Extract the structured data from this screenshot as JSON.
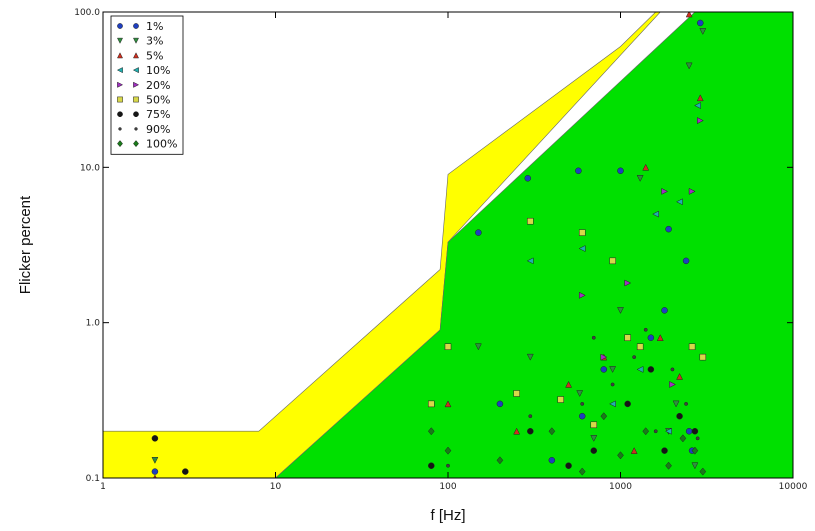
{
  "chart_data": {
    "type": "scatter",
    "title": "",
    "xlabel": "f [Hz]",
    "ylabel": "Flicker percent",
    "x_scale": "log",
    "y_scale": "log",
    "xlim": [
      1,
      10000
    ],
    "ylim": [
      0.1,
      100
    ],
    "x_ticks": [
      1,
      10,
      100,
      1000,
      10000
    ],
    "x_tick_labels": [
      "1",
      "10",
      "100",
      "1000",
      "10000"
    ],
    "y_ticks": [
      0.1,
      1,
      10,
      100
    ],
    "y_tick_labels": [
      "0.1",
      "1.0",
      "10.0",
      "100.0"
    ],
    "grid": false,
    "legend_position": "top-left",
    "regions": [
      {
        "name": "yellow-band",
        "color": "#ffff00",
        "boundary": [
          [
            1,
            0.1
          ],
          [
            1,
            0.2
          ],
          [
            8,
            0.2
          ],
          [
            90,
            2.2
          ],
          [
            100,
            9
          ],
          [
            1000,
            60
          ],
          [
            1600,
            100
          ],
          [
            3000,
            100
          ],
          [
            3000,
            3.2
          ],
          [
            2700,
            100
          ],
          [
            1700,
            100
          ],
          [
            100,
            3.3
          ],
          [
            90,
            0.9
          ],
          [
            10,
            0.1
          ]
        ]
      },
      {
        "name": "green-band",
        "color": "#00e000",
        "boundary": [
          [
            10,
            0.1
          ],
          [
            90,
            0.9
          ],
          [
            100,
            3.3
          ],
          [
            2700,
            100
          ],
          [
            10000,
            100
          ],
          [
            10000,
            0.1
          ]
        ]
      }
    ],
    "series": [
      {
        "name": "1%",
        "marker": "circle",
        "color": "#1f3fbf",
        "x": [
          2,
          150,
          290,
          570,
          1000,
          1900,
          2900,
          3000,
          200,
          800,
          1500,
          2500,
          2600,
          2400,
          1800,
          600,
          400
        ],
        "y": [
          0.11,
          3.8,
          8.5,
          9.5,
          9.5,
          4,
          85,
          0.6,
          0.3,
          0.5,
          0.8,
          0.2,
          0.15,
          2.5,
          1.2,
          0.25,
          0.13
        ]
      },
      {
        "name": "3%",
        "marker": "triangle-down",
        "color": "#2f8f3f",
        "x": [
          2,
          150,
          300,
          580,
          1300,
          2500,
          3000,
          700,
          1000,
          2100,
          900,
          1900,
          2700
        ],
        "y": [
          0.13,
          0.7,
          0.6,
          0.35,
          8.5,
          45,
          75,
          0.18,
          1.2,
          0.3,
          0.5,
          0.2,
          0.12
        ]
      },
      {
        "name": "5%",
        "marker": "triangle-up",
        "color": "#cf3020",
        "x": [
          2,
          100,
          250,
          500,
          1400,
          2500,
          2900,
          800,
          1200,
          1700,
          2200
        ],
        "y": [
          0.1,
          0.3,
          0.2,
          0.4,
          10,
          97,
          28,
          0.6,
          0.15,
          0.8,
          0.45
        ]
      },
      {
        "name": "10%",
        "marker": "triangle-left",
        "color": "#20b0b0",
        "x": [
          300,
          600,
          1600,
          2200,
          2800,
          900,
          1300,
          1900
        ],
        "y": [
          2.5,
          3,
          5,
          6,
          25,
          0.3,
          0.5,
          0.2
        ]
      },
      {
        "name": "20%",
        "marker": "triangle-right",
        "color": "#a030c0",
        "x": [
          600,
          1100,
          1800,
          2600,
          2900,
          800,
          2000
        ],
        "y": [
          1.5,
          1.8,
          7,
          7,
          20,
          0.6,
          0.4
        ]
      },
      {
        "name": "50%",
        "marker": "square",
        "color": "#d8d84a",
        "x": [
          80,
          100,
          250,
          300,
          450,
          600,
          700,
          900,
          1100,
          1300,
          2600,
          3000
        ],
        "y": [
          0.3,
          0.7,
          0.35,
          4.5,
          0.32,
          3.8,
          0.22,
          2.5,
          0.8,
          0.7,
          0.7,
          0.6
        ]
      },
      {
        "name": "75%",
        "marker": "circle",
        "color": "#151515",
        "x": [
          2,
          3,
          80,
          300,
          700,
          1100,
          1500,
          2200,
          2700,
          1800,
          500
        ],
        "y": [
          0.18,
          0.11,
          0.12,
          0.2,
          0.15,
          0.3,
          0.5,
          0.25,
          0.2,
          0.15,
          0.12
        ]
      },
      {
        "name": "90%",
        "marker": "dot",
        "color": "#404040",
        "x": [
          100,
          300,
          600,
          900,
          1200,
          1600,
          2000,
          2400,
          2800,
          700,
          1400
        ],
        "y": [
          0.12,
          0.25,
          0.3,
          0.4,
          0.6,
          0.2,
          0.5,
          0.3,
          0.18,
          0.8,
          0.9
        ]
      },
      {
        "name": "100%",
        "marker": "diamond",
        "color": "#1a7a1a",
        "x": [
          80,
          100,
          200,
          400,
          600,
          1000,
          1400,
          1900,
          2300,
          2700,
          3000,
          800
        ],
        "y": [
          0.2,
          0.15,
          0.13,
          0.2,
          0.11,
          0.14,
          0.2,
          0.12,
          0.18,
          0.15,
          0.11,
          0.25
        ]
      }
    ]
  }
}
